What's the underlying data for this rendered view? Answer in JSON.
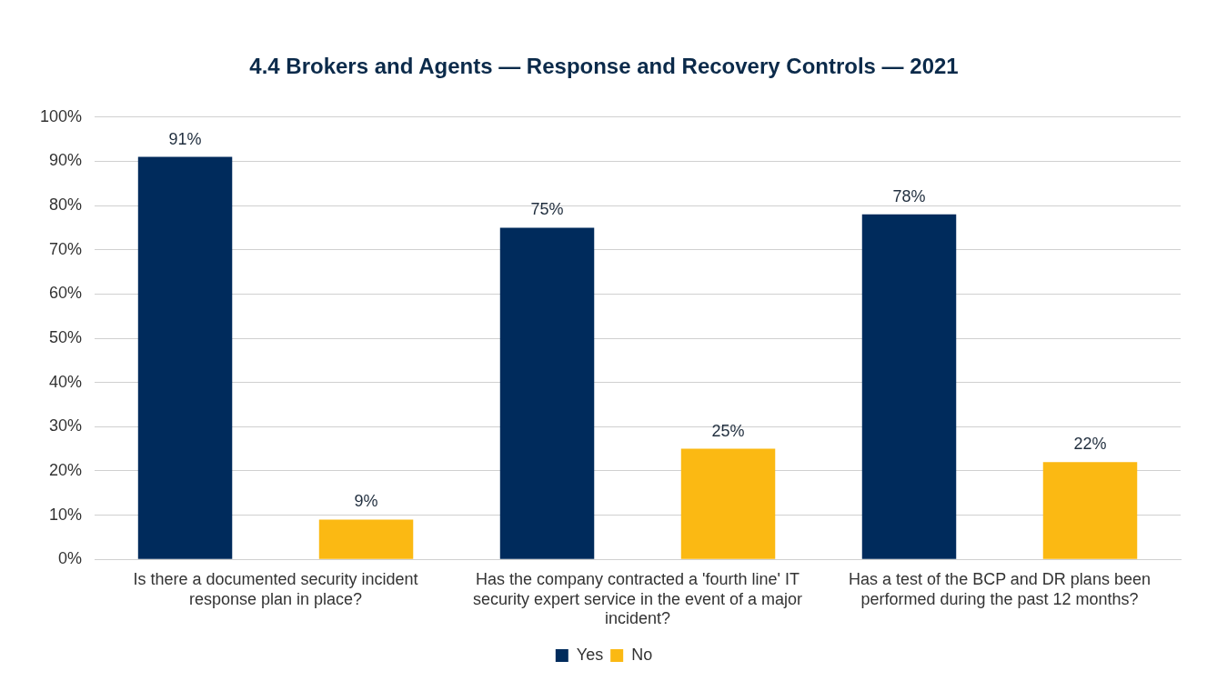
{
  "chart_data": {
    "type": "bar",
    "title": "4.4 Brokers and Agents — Response and Recovery Controls — 2021",
    "categories": [
      "Is there a documented security incident response plan in place?",
      "Has the company contracted a 'fourth line' IT security expert service in the event of a major incident?",
      "Has a test of the BCP and DR plans been performed during the past 12 months?"
    ],
    "series": [
      {
        "name": "Yes",
        "color": "#002b5c",
        "values": [
          91,
          75,
          78
        ],
        "value_labels": [
          "91%",
          "75%",
          "78%"
        ]
      },
      {
        "name": "No",
        "color": "#fbb913",
        "values": [
          9,
          25,
          22
        ],
        "value_labels": [
          "9%",
          "25%",
          "22%"
        ]
      }
    ],
    "ylim": [
      0,
      100
    ],
    "yticks": [
      {
        "value": 0,
        "label": "0%"
      },
      {
        "value": 10,
        "label": "10%"
      },
      {
        "value": 20,
        "label": "20%"
      },
      {
        "value": 30,
        "label": "30%"
      },
      {
        "value": 40,
        "label": "40%"
      },
      {
        "value": 50,
        "label": "50%"
      },
      {
        "value": 60,
        "label": "60%"
      },
      {
        "value": 70,
        "label": "70%"
      },
      {
        "value": 80,
        "label": "80%"
      },
      {
        "value": 90,
        "label": "90%"
      },
      {
        "value": 100,
        "label": "100%"
      }
    ],
    "grid": "y",
    "legend": "bottom"
  }
}
